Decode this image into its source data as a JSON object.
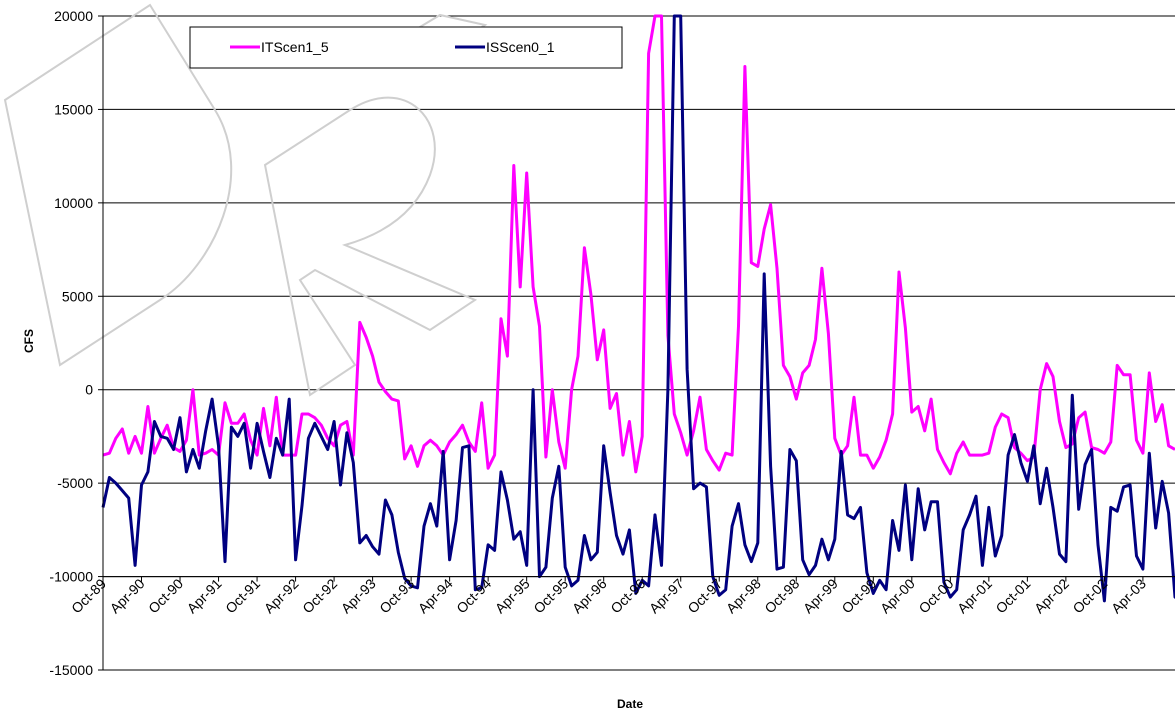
{
  "chart_data": {
    "type": "line",
    "title": "",
    "xlabel": "Date",
    "ylabel": "CFS",
    "ylim": [
      -15000,
      20000
    ],
    "yticks": [
      -15000,
      -10000,
      -5000,
      0,
      5000,
      10000,
      15000,
      20000
    ],
    "x_tick_labels": [
      "Oct-89",
      "Apr-90",
      "Oct-90",
      "Apr-91",
      "Oct-91",
      "Apr-92",
      "Oct-92",
      "Apr-93",
      "Oct-93",
      "Apr-94",
      "Oct-94",
      "Apr-95",
      "Oct-95",
      "Apr-96",
      "Oct-96",
      "Apr-97",
      "Oct-97",
      "Apr-98",
      "Oct-98",
      "Apr-99",
      "Oct-99",
      "Apr-00",
      "Oct-00",
      "Apr-01",
      "Oct-01",
      "Apr-02",
      "Oct-02",
      "Apr-03"
    ],
    "grid": "horizontal major gridlines",
    "legend_position": "top-left",
    "watermark_text": "DRAFT",
    "colors": {
      "ITScen1_5": "#ff00ff",
      "ISScen0_1": "#000080"
    },
    "x_start": "Oct-89",
    "x_interval": "month",
    "series": [
      {
        "name": "ITScen1_5",
        "values": [
          -3500,
          -3400,
          -2600,
          -2100,
          -3400,
          -2500,
          -3400,
          -900,
          -3400,
          -2600,
          -1900,
          -3100,
          -3300,
          -2700,
          0,
          -3500,
          -3400,
          -3200,
          -3500,
          -700,
          -1800,
          -1800,
          -1300,
          -2700,
          -3500,
          -1000,
          -3000,
          -400,
          -3500,
          -3500,
          -3500,
          -1300,
          -1300,
          -1500,
          -1900,
          -2600,
          -3000,
          -1900,
          -1700,
          -3500,
          3600,
          2800,
          1800,
          400,
          -100,
          -500,
          -600,
          -3700,
          -3000,
          -4100,
          -3000,
          -2700,
          -3000,
          -3500,
          -2800,
          -2400,
          -1900,
          -2800,
          -3300,
          -700,
          -4200,
          -3500,
          3800,
          1800,
          12000,
          5500,
          11600,
          5500,
          3400,
          -3600,
          0,
          -2800,
          -4200,
          0,
          1800,
          7600,
          5100,
          1600,
          3200,
          -1000,
          -200,
          -3500,
          -1700,
          -4400,
          -2500,
          18000,
          20000,
          20000,
          2900,
          -1300,
          -2300,
          -3500,
          -2200,
          -400,
          -3200,
          -3800,
          -4300,
          -3400,
          -3500,
          3400,
          17300,
          6800,
          6600,
          8600,
          9900,
          6500,
          1300,
          700,
          -500,
          900,
          1300,
          2700,
          6500,
          3000,
          -2600,
          -3500,
          -3000,
          -400,
          -3500,
          -3500,
          -4200,
          -3600,
          -2700,
          -1300,
          6300,
          3300,
          -1200,
          -900,
          -2200,
          -500,
          -3200,
          -3900,
          -4500,
          -3400,
          -2800,
          -3500,
          -3500,
          -3500,
          -3400,
          -2000,
          -1300,
          -1500,
          -3100,
          -3400,
          -3800,
          -3600,
          0,
          1400,
          700,
          -1700,
          -3100,
          -2900,
          -1500,
          -1200,
          -3100,
          -3200,
          -3400,
          -2800,
          1300,
          800,
          800,
          -2700,
          -3400,
          900,
          -1700,
          -800,
          -3000,
          -3200
        ]
      },
      {
        "name": "ISScen0_1",
        "values": [
          -6300,
          -4700,
          -5000,
          -5400,
          -5800,
          -9400,
          -5100,
          -4400,
          -1700,
          -2500,
          -2600,
          -3200,
          -1500,
          -4400,
          -3200,
          -4200,
          -2200,
          -500,
          -3000,
          -9200,
          -2000,
          -2500,
          -1800,
          -4200,
          -1800,
          -3300,
          -4700,
          -2600,
          -3500,
          -500,
          -9100,
          -6200,
          -2600,
          -1800,
          -2500,
          -3200,
          -1700,
          -5100,
          -2300,
          -3900,
          -8200,
          -7800,
          -8400,
          -8800,
          -5900,
          -6700,
          -8700,
          -10100,
          -10500,
          -10600,
          -7300,
          -6100,
          -7300,
          -3300,
          -9100,
          -7000,
          -3100,
          -3000,
          -10700,
          -10600,
          -8300,
          -8600,
          -4400,
          -5900,
          -8000,
          -7600,
          -9400,
          0,
          -10000,
          -9500,
          -5800,
          -4100,
          -9500,
          -10500,
          -10200,
          -7800,
          -9100,
          -8700,
          -3000,
          -5500,
          -7800,
          -8800,
          -7500,
          -10900,
          -10200,
          -10500,
          -6700,
          -9400,
          0,
          20000,
          20000,
          1100,
          -5300,
          -5000,
          -5200,
          -10000,
          -11000,
          -10700,
          -7300,
          -6100,
          -8300,
          -9200,
          -8200,
          6200,
          -4100,
          -9600,
          -9500,
          -3200,
          -3800,
          -9100,
          -9900,
          -9400,
          -8000,
          -9100,
          -8000,
          -3300,
          -6700,
          -6900,
          -6300,
          -9800,
          -10900,
          -10200,
          -10700,
          -7000,
          -8600,
          -5100,
          -9100,
          -5300,
          -7500,
          -6000,
          -6000,
          -10300,
          -11100,
          -10700,
          -7500,
          -6700,
          -5700,
          -9400,
          -6300,
          -8900,
          -7800,
          -3500,
          -2400,
          -3900,
          -4900,
          -3000,
          -6100,
          -4200,
          -6300,
          -8800,
          -9200,
          -300,
          -6400,
          -4000,
          -3200,
          -8300,
          -11300,
          -6300,
          -6500,
          -5200,
          -5100,
          -8900,
          -9600,
          -3400,
          -7400,
          -4900,
          -6600,
          -11100,
          -11300,
          -10700,
          -10600
        ]
      }
    ]
  }
}
